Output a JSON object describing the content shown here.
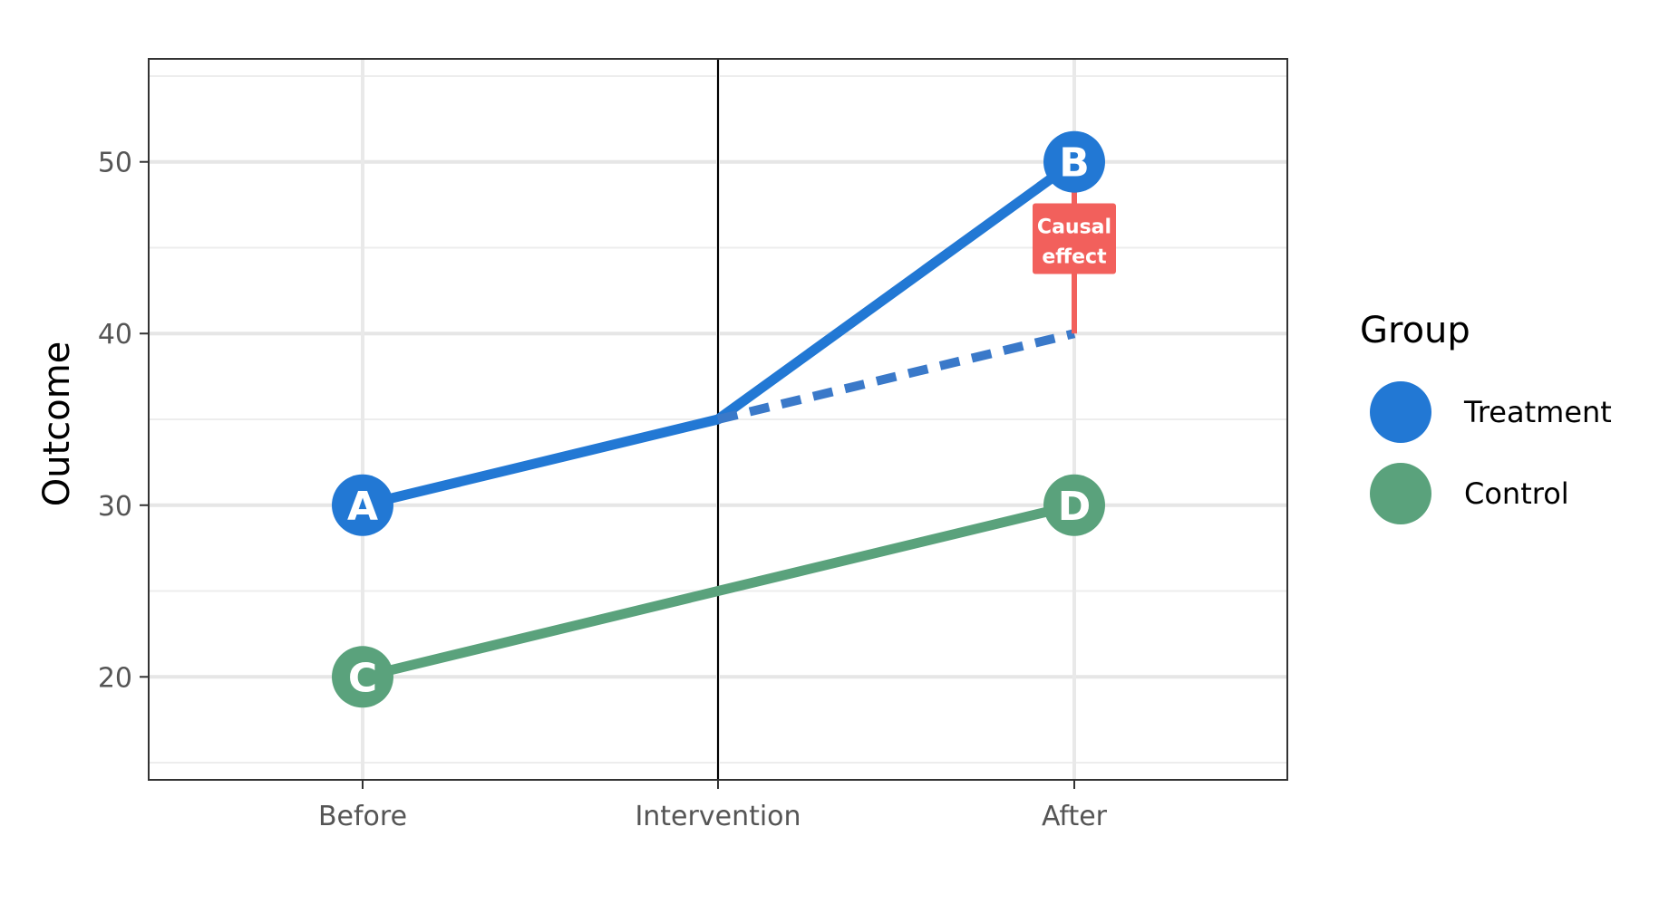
{
  "chart_data": {
    "type": "line",
    "title": "",
    "xlabel": "",
    "ylabel": "Outcome",
    "categories": [
      "Before",
      "Intervention",
      "After"
    ],
    "ylim": [
      14,
      56
    ],
    "yticks": [
      20,
      30,
      40,
      50
    ],
    "grid": true,
    "vertical_line_at": "Intervention",
    "legend": {
      "title": "Group",
      "position": "right",
      "entries": [
        {
          "name": "Treatment",
          "color": "#2278d4"
        },
        {
          "name": "Control",
          "color": "#5aa27c"
        }
      ]
    },
    "series": [
      {
        "name": "Treatment",
        "values": [
          30,
          35,
          50
        ],
        "color": "#2278d4"
      },
      {
        "name": "Control",
        "values": [
          20,
          25,
          30
        ],
        "color": "#5aa27c"
      }
    ],
    "counterfactual": {
      "name": "Treatment counterfactual",
      "style": "dashed",
      "color": "#3a79c9",
      "points": [
        [
          "Intervention",
          35
        ],
        [
          "After",
          40
        ]
      ]
    },
    "points": [
      {
        "label": "A",
        "category": "Before",
        "value": 30,
        "series": "Treatment"
      },
      {
        "label": "B",
        "category": "After",
        "value": 50,
        "series": "Treatment"
      },
      {
        "label": "C",
        "category": "Before",
        "value": 20,
        "series": "Control"
      },
      {
        "label": "D",
        "category": "After",
        "value": 30,
        "series": "Control"
      }
    ],
    "annotation": {
      "line1": "Causal",
      "line2": "effect",
      "category": "After",
      "from": 40,
      "to": 50,
      "color": "#f2605c"
    }
  }
}
